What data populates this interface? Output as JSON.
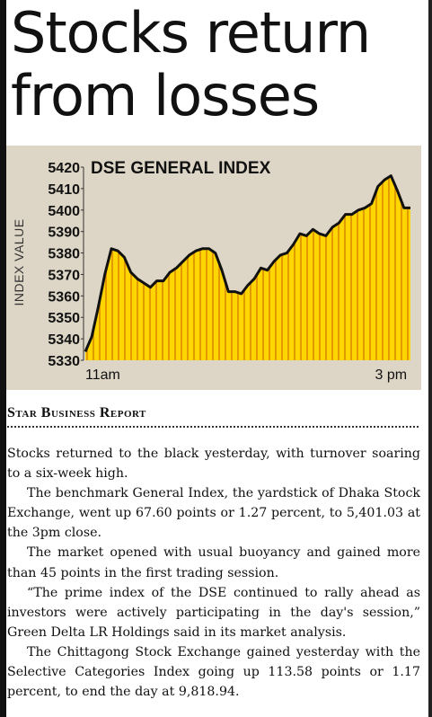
{
  "headline": {
    "line1": "Stocks return",
    "line2": "from losses"
  },
  "byline": {
    "text": "Star Business Report"
  },
  "paragraphs": [
    "Stocks returned to the black yesterday, with turnover soaring to a six-week high.",
    "The benchmark General Index, the yardstick of Dhaka Stock Exchange, went up 67.60 points or 1.27 percent, to 5,401.03 at the 3pm close.",
    "The market opened with usual buoyancy and gained more than 45 points in the first trading session.",
    "“The prime index of the DSE continued to rally ahead as investors were actively participating in the day's session,” Green Delta LR Holdings said in its market analysis.",
    "The Chittagong Stock Exchange gained yesterday with the Selective Categories Index going up 113.58 points or 1.17 percent, to end the day at 9,818.94."
  ],
  "colors": {
    "chart_bg": "#ddd6c6",
    "area_fill": "#ffd600",
    "area_stripe": "#e29a00",
    "line": "#111111"
  },
  "chart_data": {
    "type": "area",
    "title": "DSE GENERAL INDEX",
    "ylabel": "INDEX VALUE",
    "xlabel": "",
    "ylim": [
      5330,
      5420
    ],
    "yticks": [
      5420,
      5410,
      5400,
      5390,
      5380,
      5370,
      5360,
      5350,
      5340,
      5330
    ],
    "xtick_labels": [
      {
        "label": "11am",
        "x": 0
      },
      {
        "label": "3 pm",
        "x": 94
      }
    ],
    "grid": false,
    "legend": "none",
    "x": [
      0,
      2,
      4,
      6,
      8,
      10,
      12,
      14,
      16,
      18,
      20,
      22,
      24,
      26,
      28,
      30,
      32,
      34,
      36,
      38,
      40,
      42,
      44,
      46,
      48,
      50,
      52,
      54,
      56,
      58,
      60,
      62,
      64,
      66,
      68,
      70,
      72,
      74,
      76,
      78,
      80,
      82,
      84,
      86,
      88,
      90,
      92,
      94,
      96,
      98,
      100
    ],
    "values": [
      5334,
      5341,
      5355,
      5370,
      5382,
      5381,
      5378,
      5371,
      5368,
      5366,
      5364,
      5367,
      5367,
      5371,
      5373,
      5376,
      5379,
      5381,
      5382,
      5382,
      5380,
      5372,
      5362,
      5362,
      5361,
      5365,
      5368,
      5373,
      5372,
      5376,
      5379,
      5380,
      5384,
      5389,
      5388,
      5391,
      5389,
      5388,
      5392,
      5394,
      5398,
      5398,
      5400,
      5401,
      5403,
      5411,
      5414,
      5416,
      5409,
      5401,
      5401
    ]
  }
}
